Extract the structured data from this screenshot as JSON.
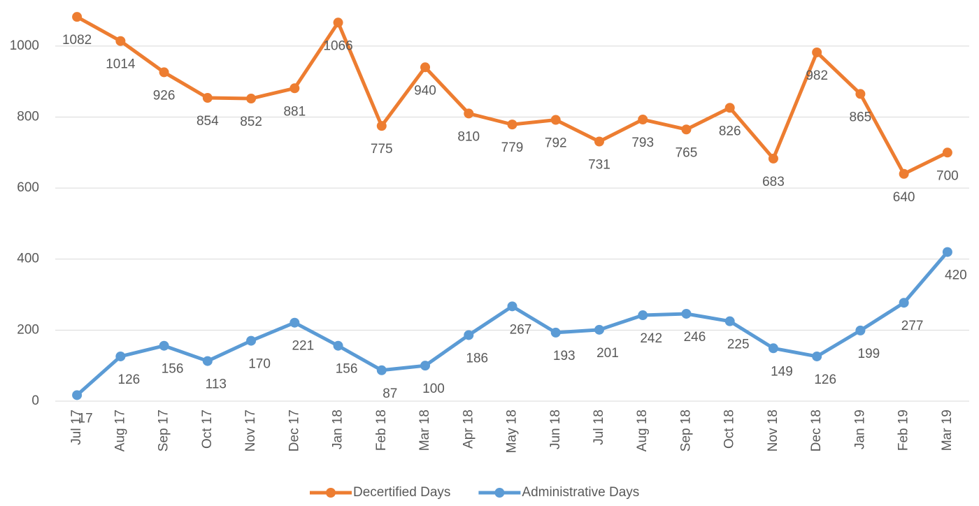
{
  "chart_data": {
    "type": "line",
    "categories": [
      "Jul 17",
      "Aug 17",
      "Sep 17",
      "Oct 17",
      "Nov 17",
      "Dec 17",
      "Jan 18",
      "Feb 18",
      "Mar 18",
      "Apr 18",
      "May 18",
      "Jun 18",
      "Jul 18",
      "Aug 18",
      "Sep 18",
      "Oct 18",
      "Nov 18",
      "Dec 18",
      "Jan 19",
      "Feb 19",
      "Mar 19"
    ],
    "series": [
      {
        "name": "Decertified Days",
        "color": "#ed7d31",
        "values": [
          1082,
          1014,
          926,
          854,
          852,
          881,
          1066,
          775,
          940,
          810,
          779,
          792,
          731,
          793,
          765,
          826,
          683,
          982,
          865,
          640,
          700
        ]
      },
      {
        "name": "Administrative Days",
        "color": "#5b9bd5",
        "values": [
          17,
          126,
          156,
          113,
          170,
          221,
          156,
          87,
          100,
          186,
          267,
          193,
          201,
          242,
          246,
          225,
          149,
          126,
          199,
          277,
          420
        ]
      }
    ],
    "ylim": [
      0,
      1100
    ],
    "yticks": [
      0,
      200,
      400,
      600,
      800,
      1000
    ],
    "grid": true,
    "legend": "bottom"
  }
}
